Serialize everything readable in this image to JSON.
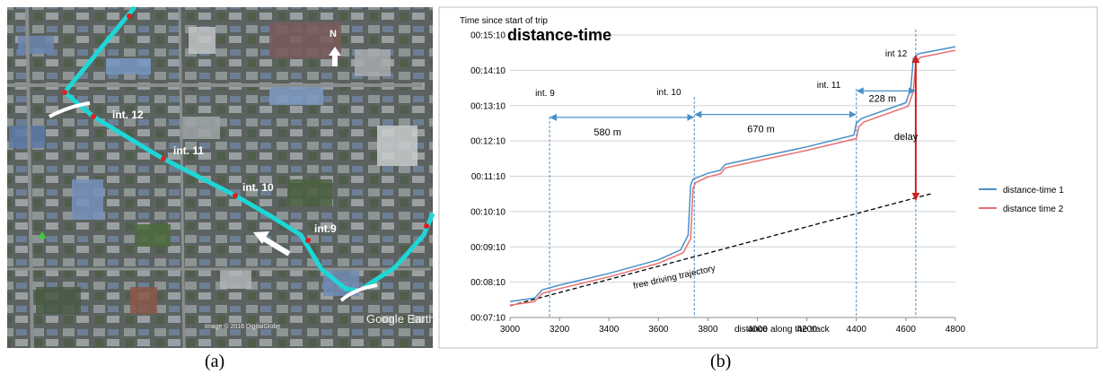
{
  "map_panel": {
    "labels": [
      "int. 12",
      "int. 11",
      "int. 10",
      "int.9"
    ],
    "north": "N",
    "credit": "Image © 2016 DigitalGlobe",
    "brand": "Google Earth",
    "colors": {
      "route": "#1fd6d6",
      "intersection": "#e02020"
    }
  },
  "captions": {
    "a": "(a)",
    "b": "(b)"
  },
  "chart_data": {
    "type": "line",
    "title": "distance-time",
    "ylabel": "Time since start of trip",
    "xlabel": "distance along the track",
    "xlim": [
      3000,
      4800
    ],
    "ylim": [
      "00:07:10",
      "00:15:10"
    ],
    "x_ticks": [
      "3000",
      "3200",
      "3400",
      "3600",
      "3800",
      "4000",
      "4200",
      "4400",
      "4600",
      "4800"
    ],
    "y_ticks": [
      "00:07:10",
      "00:08:10",
      "00:09:10",
      "00:10:10",
      "00:11:10",
      "00:12:10",
      "00:13:10",
      "00:14:10",
      "00:15:10"
    ],
    "grid": "horizontal",
    "legend": "right",
    "series": [
      {
        "name": "distance-time 1",
        "color": "#4a90c8",
        "points": [
          [
            3000,
            "00:07:37"
          ],
          [
            3100,
            "00:07:43"
          ],
          [
            3130,
            "00:07:57"
          ],
          [
            3200,
            "00:08:05"
          ],
          [
            3400,
            "00:08:25"
          ],
          [
            3600,
            "00:08:48"
          ],
          [
            3690,
            "00:09:05"
          ],
          [
            3720,
            "00:09:30"
          ],
          [
            3730,
            "00:10:55"
          ],
          [
            3740,
            "00:11:05"
          ],
          [
            3800,
            "00:11:15"
          ],
          [
            3850,
            "00:11:20"
          ],
          [
            3870,
            "00:11:30"
          ],
          [
            4000,
            "00:11:42"
          ],
          [
            4200,
            "00:12:00"
          ],
          [
            4390,
            "00:12:20"
          ],
          [
            4400,
            "00:12:40"
          ],
          [
            4420,
            "00:12:48"
          ],
          [
            4600,
            "00:13:15"
          ],
          [
            4620,
            "00:13:40"
          ],
          [
            4630,
            "00:14:30"
          ],
          [
            4650,
            "00:14:38"
          ],
          [
            4800,
            "00:14:50"
          ]
        ]
      },
      {
        "name": "distance time 2",
        "color": "#e87070",
        "points": [
          [
            3000,
            "00:07:31"
          ],
          [
            3100,
            "00:07:37"
          ],
          [
            3130,
            "00:07:51"
          ],
          [
            3200,
            "00:07:59"
          ],
          [
            3400,
            "00:08:19"
          ],
          [
            3600,
            "00:08:42"
          ],
          [
            3700,
            "00:09:00"
          ],
          [
            3730,
            "00:09:24"
          ],
          [
            3740,
            "00:10:50"
          ],
          [
            3750,
            "00:10:59"
          ],
          [
            3800,
            "00:11:09"
          ],
          [
            3850,
            "00:11:14"
          ],
          [
            3870,
            "00:11:24"
          ],
          [
            4000,
            "00:11:36"
          ],
          [
            4200,
            "00:11:54"
          ],
          [
            4400,
            "00:12:14"
          ],
          [
            4410,
            "00:12:34"
          ],
          [
            4430,
            "00:12:42"
          ],
          [
            4610,
            "00:13:09"
          ],
          [
            4630,
            "00:13:34"
          ],
          [
            4640,
            "00:14:24"
          ],
          [
            4660,
            "00:14:32"
          ],
          [
            4800,
            "00:14:44"
          ]
        ]
      }
    ],
    "reference_line": {
      "label": "free driving trajectory",
      "points": [
        [
          3000,
          "00:07:30"
        ],
        [
          4700,
          "00:10:40"
        ]
      ]
    },
    "intersections": [
      {
        "label": "int. 9",
        "x": 3160
      },
      {
        "label": "int. 10",
        "x": 3745
      },
      {
        "label": "int. 11",
        "x": 4400
      },
      {
        "label": "int 12",
        "x": 4640
      }
    ],
    "distances": [
      {
        "label": "580 m",
        "from": 3160,
        "to": 3745,
        "y": "00:12:50"
      },
      {
        "label": "670 m",
        "from": 3745,
        "to": 4400,
        "y": "00:12:55"
      },
      {
        "label": "228 m",
        "from": 4400,
        "to": 4640,
        "y": "00:13:35"
      }
    ],
    "delay": {
      "label": "delay",
      "x": 4640,
      "from": "00:14:35",
      "to": "00:10:30"
    }
  }
}
